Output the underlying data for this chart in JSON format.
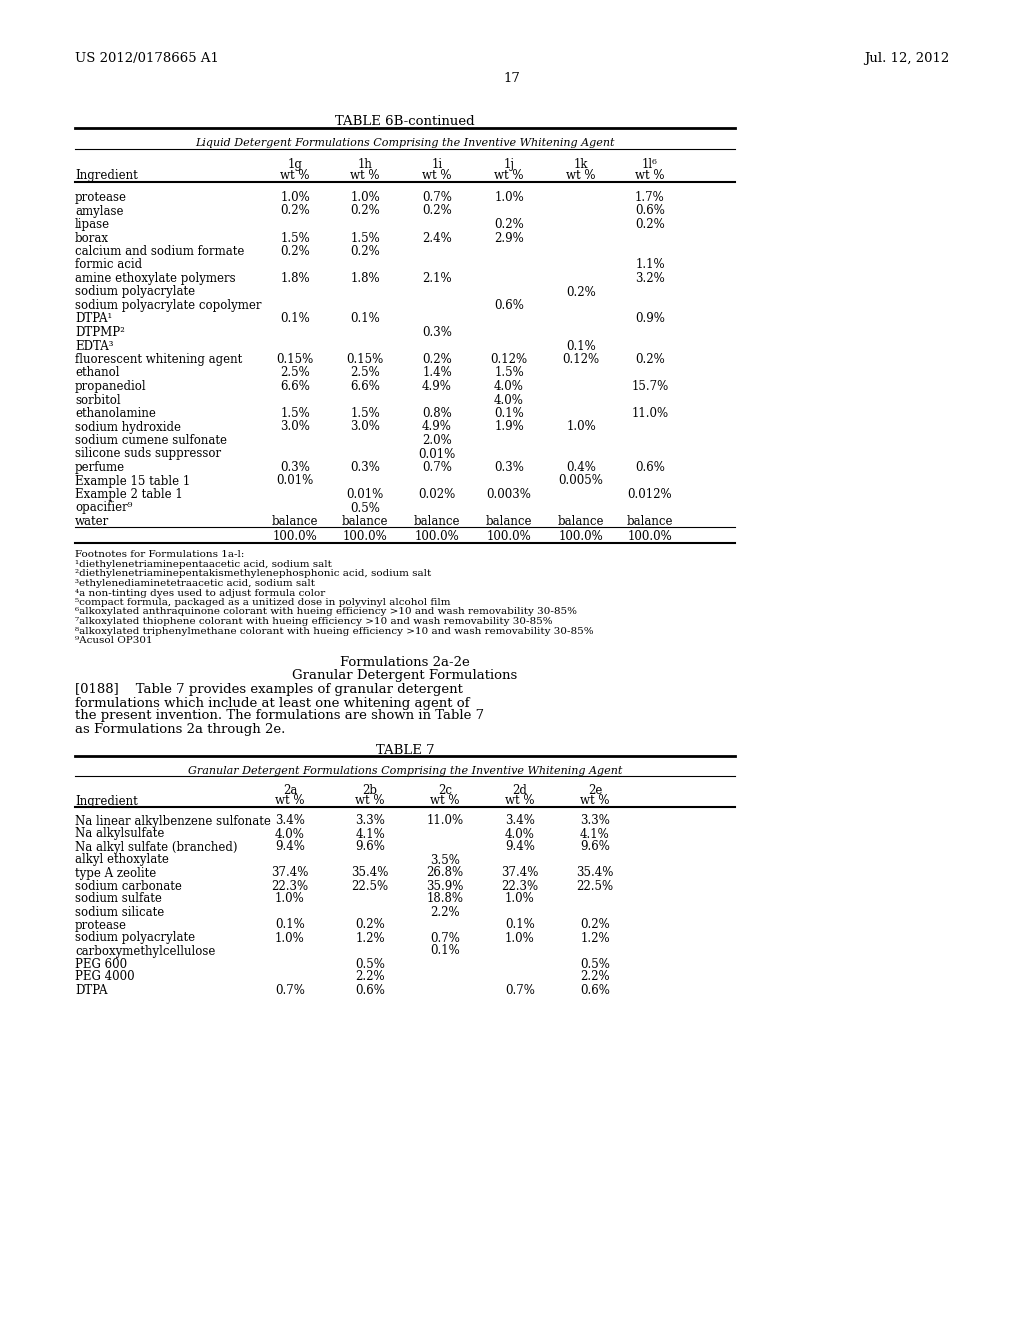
{
  "header_left": "US 2012/0178665 A1",
  "header_right": "Jul. 12, 2012",
  "page_number": "17",
  "table6b_title": "TABLE 6B-continued",
  "table6b_subtitle": "Liquid Detergent Formulations Comprising the Inventive Whitening Agent",
  "table6b_col_labels_top": [
    "1g",
    "1h",
    "1i",
    "1j",
    "1k",
    "1l⁶"
  ],
  "table6b_col_labels_bot": [
    "wt %",
    "wt %",
    "wt %",
    "wt %",
    "wt %",
    "wt %"
  ],
  "table6b_rows": [
    [
      "protease",
      "1.0%",
      "1.0%",
      "0.7%",
      "1.0%",
      "",
      "1.7%"
    ],
    [
      "amylase",
      "0.2%",
      "0.2%",
      "0.2%",
      "",
      "",
      "0.6%"
    ],
    [
      "lipase",
      "",
      "",
      "",
      "0.2%",
      "",
      "0.2%"
    ],
    [
      "borax",
      "1.5%",
      "1.5%",
      "2.4%",
      "2.9%",
      "",
      ""
    ],
    [
      "calcium and sodium formate",
      "0.2%",
      "0.2%",
      "",
      "",
      "",
      ""
    ],
    [
      "formic acid",
      "",
      "",
      "",
      "",
      "",
      "1.1%"
    ],
    [
      "amine ethoxylate polymers",
      "1.8%",
      "1.8%",
      "2.1%",
      "",
      "",
      "3.2%"
    ],
    [
      "sodium polyacrylate",
      "",
      "",
      "",
      "",
      "0.2%",
      ""
    ],
    [
      "sodium polyacrylate copolymer",
      "",
      "",
      "",
      "0.6%",
      "",
      ""
    ],
    [
      "DTPA¹",
      "0.1%",
      "0.1%",
      "",
      "",
      "",
      "0.9%"
    ],
    [
      "DTPMP²",
      "",
      "",
      "0.3%",
      "",
      "",
      ""
    ],
    [
      "EDTA³",
      "",
      "",
      "",
      "",
      "0.1%",
      ""
    ],
    [
      "fluorescent whitening agent",
      "0.15%",
      "0.15%",
      "0.2%",
      "0.12%",
      "0.12%",
      "0.2%"
    ],
    [
      "ethanol",
      "2.5%",
      "2.5%",
      "1.4%",
      "1.5%",
      "",
      ""
    ],
    [
      "propanediol",
      "6.6%",
      "6.6%",
      "4.9%",
      "4.0%",
      "",
      "15.7%"
    ],
    [
      "sorbitol",
      "",
      "",
      "",
      "4.0%",
      "",
      ""
    ],
    [
      "ethanolamine",
      "1.5%",
      "1.5%",
      "0.8%",
      "0.1%",
      "",
      "11.0%"
    ],
    [
      "sodium hydroxide",
      "3.0%",
      "3.0%",
      "4.9%",
      "1.9%",
      "1.0%",
      ""
    ],
    [
      "sodium cumene sulfonate",
      "",
      "",
      "2.0%",
      "",
      "",
      ""
    ],
    [
      "silicone suds suppressor",
      "",
      "",
      "0.01%",
      "",
      "",
      ""
    ],
    [
      "perfume",
      "0.3%",
      "0.3%",
      "0.7%",
      "0.3%",
      "0.4%",
      "0.6%"
    ],
    [
      "Example 15 table 1",
      "0.01%",
      "",
      "",
      "",
      "0.005%",
      ""
    ],
    [
      "Example 2 table 1",
      "",
      "0.01%",
      "0.02%",
      "0.003%",
      "",
      "0.012%"
    ],
    [
      "opacifier⁹",
      "",
      "0.5%",
      "",
      "",
      "",
      ""
    ],
    [
      "water",
      "balance",
      "balance",
      "balance",
      "balance",
      "balance",
      "balance"
    ],
    [
      "__total__",
      "100.0%",
      "100.0%",
      "100.0%",
      "100.0%",
      "100.0%",
      "100.0%"
    ]
  ],
  "footnotes": [
    "Footnotes for Formulations 1a-l:",
    "¹diethylenetriaminepentaacetic acid, sodium salt",
    "²diethylenetriaminepentakismethylenephosphonic acid, sodium salt",
    "³ethylenediaminetetraacetic acid, sodium salt",
    "⁴a non-tinting dyes used to adjust formula color",
    "⁵compact formula, packaged as a unitized dose in polyvinyl alcohol film",
    "⁶alkoxylated anthraquinone colorant with hueing efficiency >10 and wash removability 30-85%",
    "⁷alkoxylated thiophene colorant with hueing efficiency >10 and wash removability 30-85%",
    "⁸alkoxylated triphenylmethane colorant with hueing efficiency >10 and wash removability 30-85%",
    "⁹Acusol OP301"
  ],
  "section_title1": "Formulations 2a-2e",
  "section_title2": "Granular Detergent Formulations",
  "para_lines": [
    "[0188]    Table 7 provides examples of granular detergent",
    "formulations which include at least one whitening agent of",
    "the present invention. The formulations are shown in Table 7",
    "as Formulations 2a through 2e."
  ],
  "table7_title": "TABLE 7",
  "table7_subtitle": "Granular Detergent Formulations Comprising the Inventive Whitening Agent",
  "table7_col_labels_top": [
    "2a",
    "2b",
    "2c",
    "2d",
    "2e"
  ],
  "table7_col_labels_bot": [
    "wt %",
    "wt %",
    "wt %",
    "wt %",
    "wt %"
  ],
  "table7_rows": [
    [
      "Na linear alkylbenzene sulfonate",
      "3.4%",
      "3.3%",
      "11.0%",
      "3.4%",
      "3.3%"
    ],
    [
      "Na alkylsulfate",
      "4.0%",
      "4.1%",
      "",
      "4.0%",
      "4.1%"
    ],
    [
      "Na alkyl sulfate (branched)",
      "9.4%",
      "9.6%",
      "",
      "9.4%",
      "9.6%"
    ],
    [
      "alkyl ethoxylate",
      "",
      "",
      "3.5%",
      "",
      ""
    ],
    [
      "type A zeolite",
      "37.4%",
      "35.4%",
      "26.8%",
      "37.4%",
      "35.4%"
    ],
    [
      "sodium carbonate",
      "22.3%",
      "22.5%",
      "35.9%",
      "22.3%",
      "22.5%"
    ],
    [
      "sodium sulfate",
      "1.0%",
      "",
      "18.8%",
      "1.0%",
      ""
    ],
    [
      "sodium silicate",
      "",
      "",
      "2.2%",
      "",
      ""
    ],
    [
      "protease",
      "0.1%",
      "0.2%",
      "",
      "0.1%",
      "0.2%"
    ],
    [
      "sodium polyacrylate",
      "1.0%",
      "1.2%",
      "0.7%",
      "1.0%",
      "1.2%"
    ],
    [
      "carboxymethylcellulose",
      "",
      "",
      "0.1%",
      "",
      ""
    ],
    [
      "PEG 600",
      "",
      "0.5%",
      "",
      "",
      "0.5%"
    ],
    [
      "PEG 4000",
      "",
      "2.2%",
      "",
      "",
      "2.2%"
    ],
    [
      "DTPA",
      "0.7%",
      "0.6%",
      "",
      "0.7%",
      "0.6%"
    ]
  ]
}
